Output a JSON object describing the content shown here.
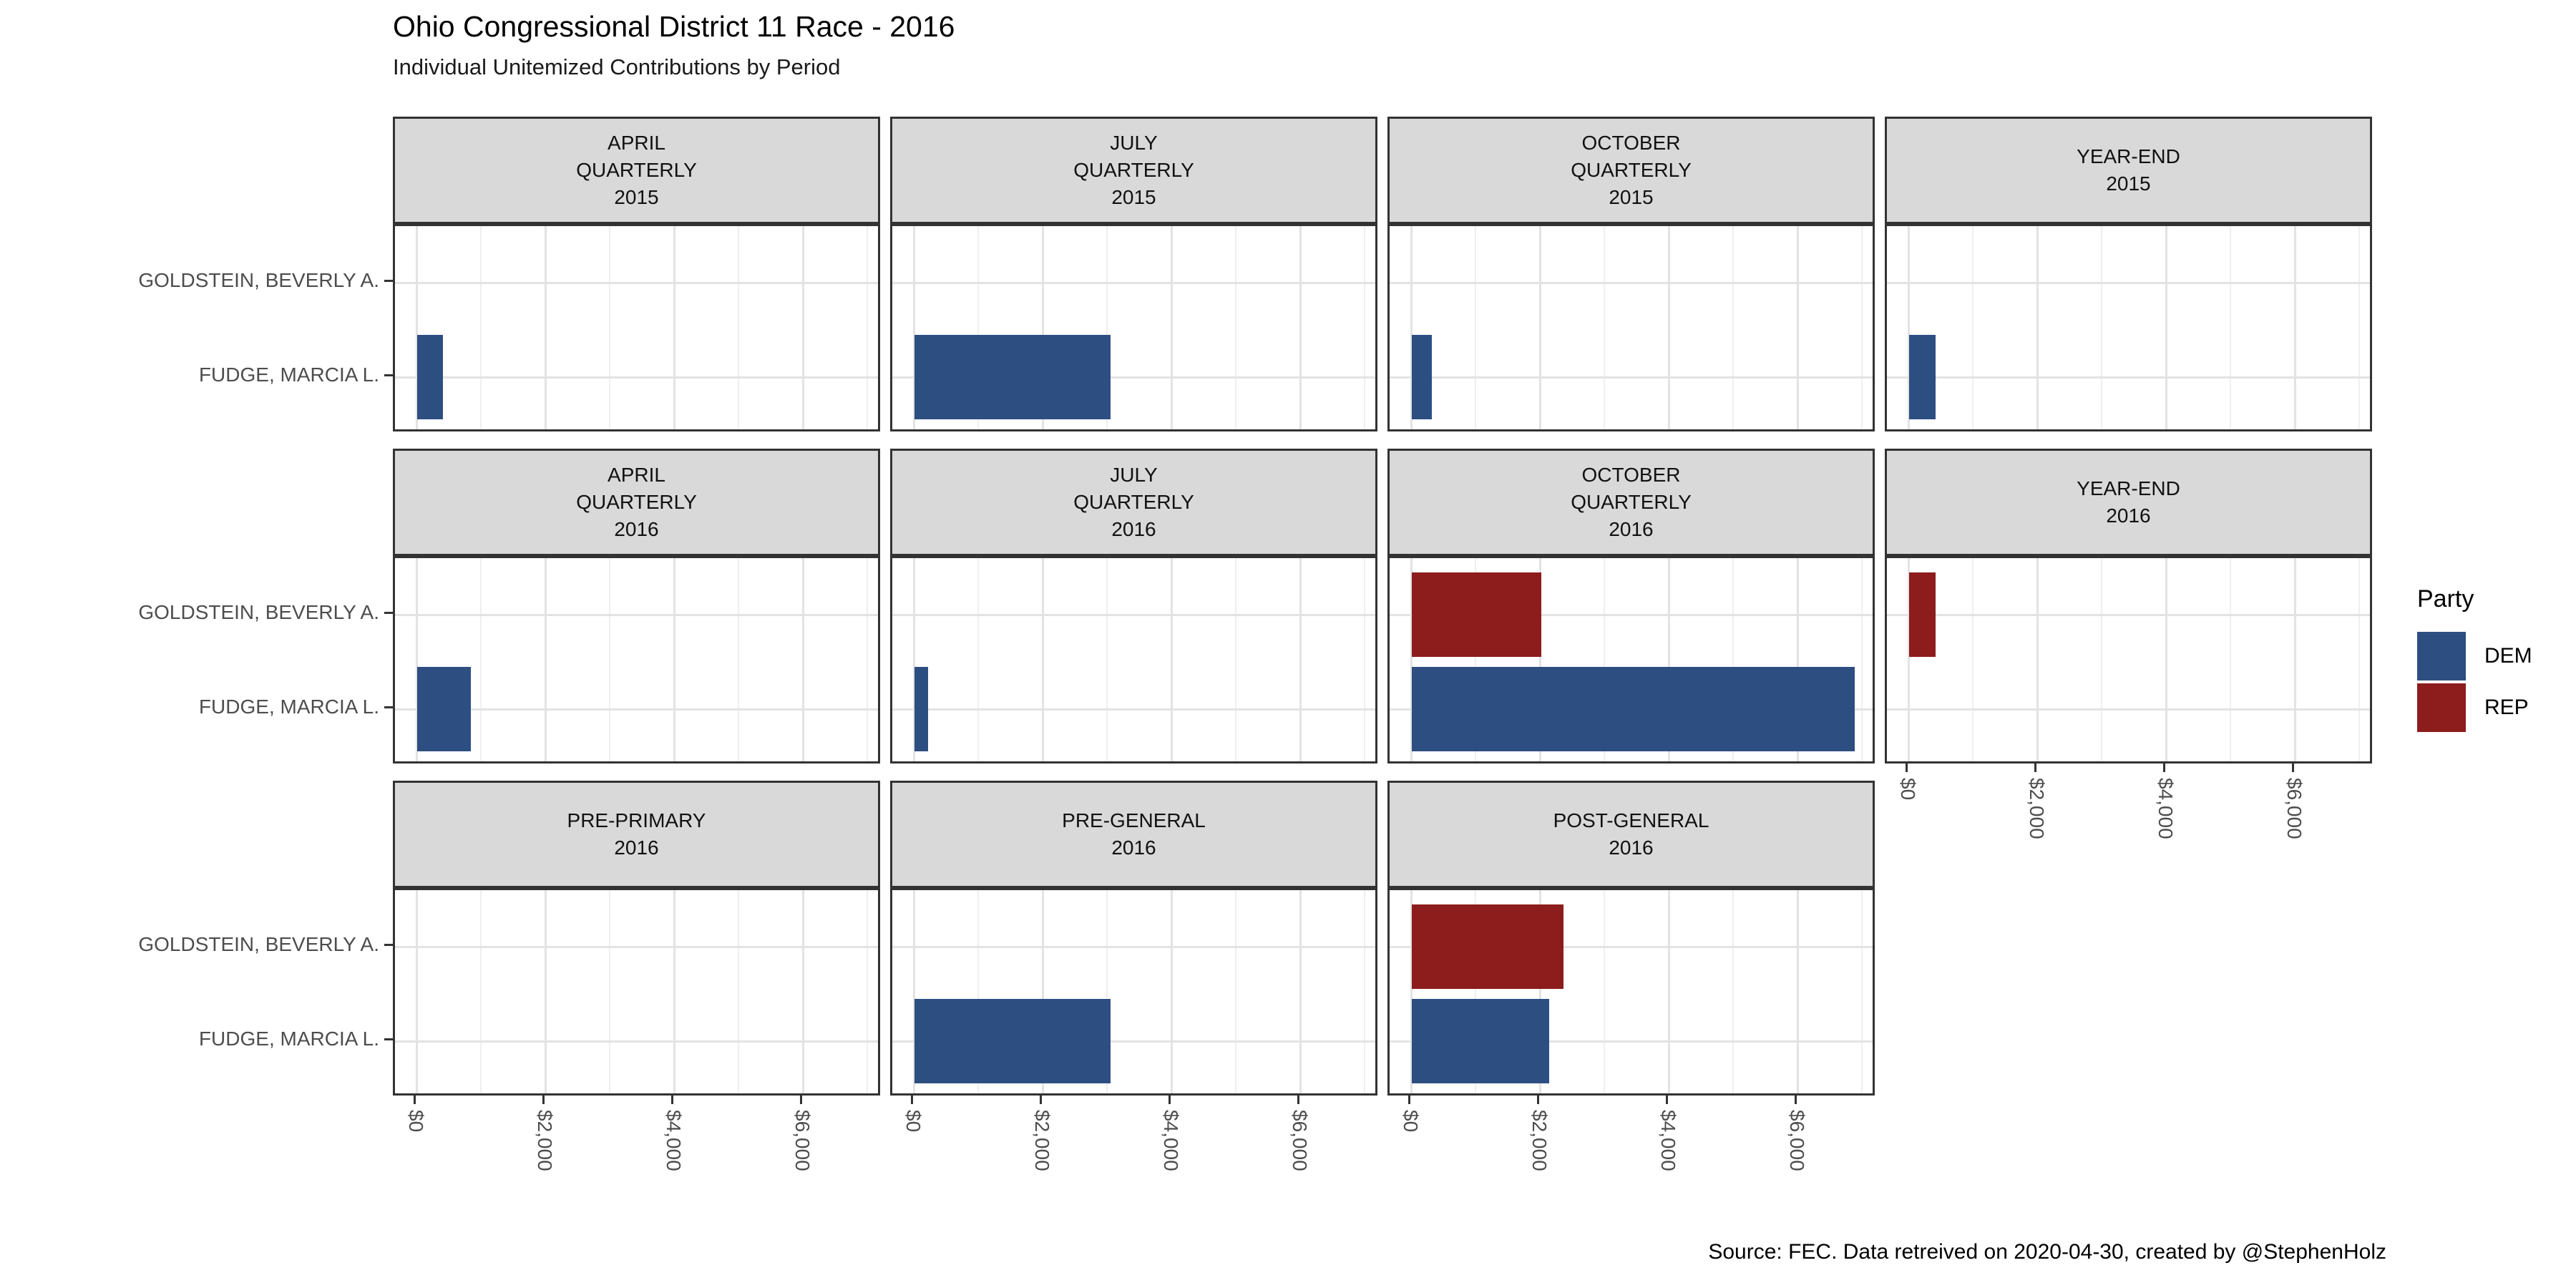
{
  "title": "Ohio Congressional District 11 Race - 2016",
  "subtitle": "Individual Unitemized Contributions by Period",
  "caption": "Source: FEC. Data retreived on 2020-04-30, created by @StephenHolz",
  "legend": {
    "title": "Party",
    "entries": [
      {
        "label": "DEM",
        "color": "#2d4e81"
      },
      {
        "label": "REP",
        "color": "#8d1c1c"
      }
    ]
  },
  "colors": {
    "dem": "#2d4e81",
    "rep": "#8d1c1c",
    "strip_bg": "#d9d9d9",
    "panel_border": "#333333",
    "grid_major": "#e3e3e3",
    "grid_minor": "#efefef",
    "axis_text": "#4d4d4d"
  },
  "chart_data": {
    "type": "bar",
    "orientation": "horizontal",
    "title": "Ohio Congressional District 11 Race - 2016",
    "subtitle": "Individual Unitemized Contributions by Period",
    "categories": [
      "GOLDSTEIN, BEVERLY A.",
      "FUDGE, MARCIA L."
    ],
    "candidates": [
      {
        "name": "GOLDSTEIN, BEVERLY A.",
        "party": "REP"
      },
      {
        "name": "FUDGE, MARCIA L.",
        "party": "DEM"
      }
    ],
    "x_ticks": [
      "$0",
      "$2,000",
      "$4,000",
      "$6,000"
    ],
    "x_tick_values": [
      0,
      2000,
      4000,
      6000
    ],
    "x_domain": [
      -341,
      7224
    ],
    "gridline_step": 1000,
    "grid": true,
    "legend_position": "right",
    "facets": [
      {
        "strip_lines": [
          "APRIL",
          "QUARTERLY",
          "2015"
        ],
        "row": 0,
        "col": 0,
        "x_axis": false,
        "bars": [
          {
            "candidate": "FUDGE, MARCIA L.",
            "party": "DEM",
            "value": 400
          }
        ]
      },
      {
        "strip_lines": [
          "JULY",
          "QUARTERLY",
          "2015"
        ],
        "row": 0,
        "col": 1,
        "x_axis": false,
        "bars": [
          {
            "candidate": "FUDGE, MARCIA L.",
            "party": "DEM",
            "value": 3050
          }
        ]
      },
      {
        "strip_lines": [
          "OCTOBER",
          "QUARTERLY",
          "2015"
        ],
        "row": 0,
        "col": 2,
        "x_axis": false,
        "bars": [
          {
            "candidate": "FUDGE, MARCIA L.",
            "party": "DEM",
            "value": 320
          }
        ]
      },
      {
        "strip_lines": [
          "YEAR-END",
          "2015"
        ],
        "row": 0,
        "col": 3,
        "x_axis": false,
        "bars": [
          {
            "candidate": "FUDGE, MARCIA L.",
            "party": "DEM",
            "value": 410
          }
        ]
      },
      {
        "strip_lines": [
          "APRIL",
          "QUARTERLY",
          "2016"
        ],
        "row": 1,
        "col": 0,
        "x_axis": false,
        "bars": [
          {
            "candidate": "FUDGE, MARCIA L.",
            "party": "DEM",
            "value": 840
          }
        ]
      },
      {
        "strip_lines": [
          "JULY",
          "QUARTERLY",
          "2016"
        ],
        "row": 1,
        "col": 1,
        "x_axis": false,
        "bars": [
          {
            "candidate": "FUDGE, MARCIA L.",
            "party": "DEM",
            "value": 220
          }
        ]
      },
      {
        "strip_lines": [
          "OCTOBER",
          "QUARTERLY",
          "2016"
        ],
        "row": 1,
        "col": 2,
        "x_axis": false,
        "bars": [
          {
            "candidate": "GOLDSTEIN, BEVERLY A.",
            "party": "REP",
            "value": 2010
          },
          {
            "candidate": "FUDGE, MARCIA L.",
            "party": "DEM",
            "value": 6880
          }
        ]
      },
      {
        "strip_lines": [
          "YEAR-END",
          "2016"
        ],
        "row": 1,
        "col": 3,
        "x_axis": true,
        "bars": [
          {
            "candidate": "GOLDSTEIN, BEVERLY A.",
            "party": "REP",
            "value": 410
          }
        ]
      },
      {
        "strip_lines": [
          "PRE-PRIMARY",
          "2016"
        ],
        "row": 2,
        "col": 0,
        "x_axis": true,
        "bars": []
      },
      {
        "strip_lines": [
          "PRE-GENERAL",
          "2016"
        ],
        "row": 2,
        "col": 1,
        "x_axis": true,
        "bars": [
          {
            "candidate": "FUDGE, MARCIA L.",
            "party": "DEM",
            "value": 3050
          }
        ]
      },
      {
        "strip_lines": [
          "POST-GENERAL",
          "2016"
        ],
        "row": 2,
        "col": 2,
        "x_axis": true,
        "bars": [
          {
            "candidate": "GOLDSTEIN, BEVERLY A.",
            "party": "REP",
            "value": 2360
          },
          {
            "candidate": "FUDGE, MARCIA L.",
            "party": "DEM",
            "value": 2140
          }
        ]
      }
    ]
  }
}
